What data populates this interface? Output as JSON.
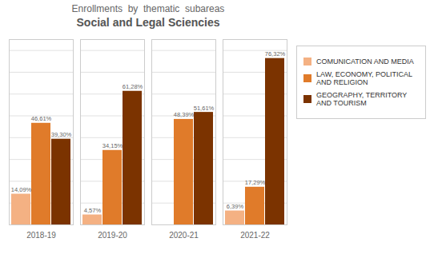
{
  "chart_data": {
    "type": "bar",
    "title": "Enrollments  by  thematic  subareas",
    "subtitle": "Social and Legal Sciencies",
    "categories": [
      "2018-19",
      "2019-20",
      "2020-21",
      "2021-22"
    ],
    "series": [
      {
        "name": "COMUNICATION AND MEDIA",
        "color": "#f4b183",
        "values": [
          14.09,
          4.57,
          0,
          6.39
        ],
        "value_labels": [
          "14,09%",
          "4,57%",
          null,
          "6,39%"
        ]
      },
      {
        "name": "LAW, ECONOMY, POLITICAL AND RELIGION",
        "color": "#e07b2a",
        "values": [
          46.61,
          34.15,
          48.39,
          17.29
        ],
        "value_labels": [
          "46,61%",
          "34,15%",
          "48,39%",
          "17,29%"
        ]
      },
      {
        "name": "GEOGRAPHY, TERRITORY AND TOURISM",
        "color": "#7b3300",
        "values": [
          39.3,
          61.28,
          51.61,
          76.32
        ],
        "value_labels": [
          "39,30%",
          "61,28%",
          "51,61%",
          "76,32%"
        ]
      }
    ],
    "ylim": [
      0,
      85
    ],
    "yticks": [
      0,
      10,
      20,
      30,
      40,
      50,
      60,
      70,
      80
    ],
    "grid": true,
    "legend": "right",
    "data_labels": true,
    "tick_labels": "x"
  }
}
